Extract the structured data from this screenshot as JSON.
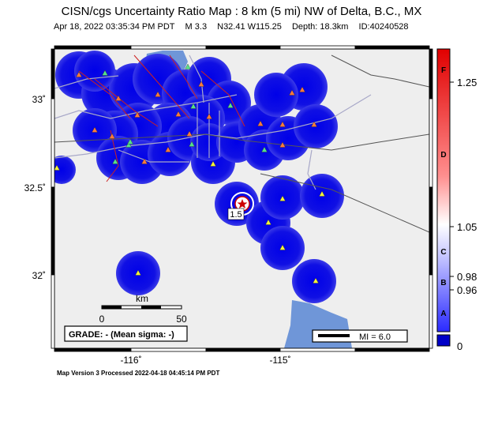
{
  "header": {
    "title": "CISN/cgs Uncertainty Ratio Map : 8 km (5 mi) NW of Delta, B.C., MX",
    "date": "Apr 18, 2022 03:35:34 PM PDT",
    "magnitude": "M 3.3",
    "location": "N32.41 W115.25",
    "depth": "Depth: 18.3km",
    "event_id": "ID:40240528"
  },
  "map": {
    "lat_labels": [
      "33˚",
      "32.5˚",
      "32˚"
    ],
    "lon_labels": [
      "-116˚",
      "-115˚"
    ],
    "epicenter_label": "1.5",
    "scale_unit": "km",
    "scale_ticks": [
      "0",
      "50"
    ],
    "grade_text": "GRADE: - (Mean sigma: -)",
    "mi_text": "MI = 6.0",
    "colors": {
      "water": "#6f96d8",
      "land": "#eeeeee",
      "blob": "#1515e6",
      "fault": "#cc2222"
    }
  },
  "colorbar": {
    "letters": [
      "F",
      "D",
      "C",
      "B",
      "A"
    ],
    "values": [
      "1.25",
      "1.05",
      "0.98",
      "0.96",
      "0"
    ]
  },
  "footer": {
    "text": "Map Version 3 Processed 2022-04-18 04:45:14 PM PDT"
  }
}
